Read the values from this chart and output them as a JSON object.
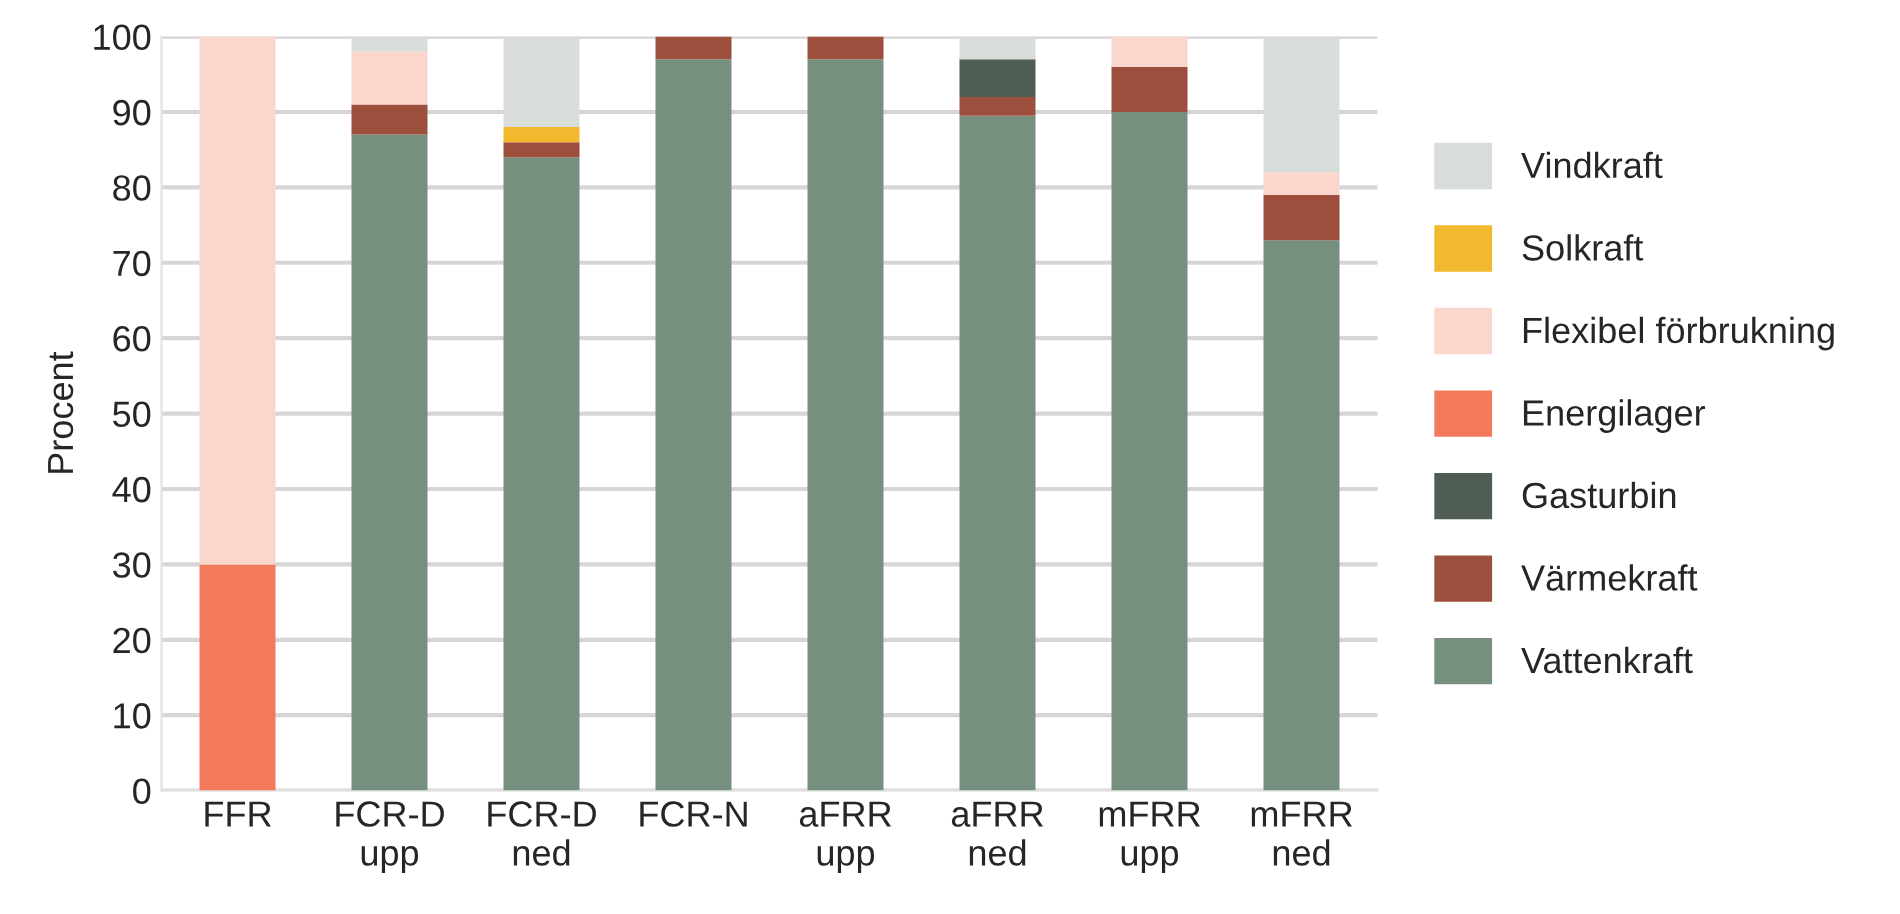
{
  "chart_data": {
    "type": "bar",
    "stacked": true,
    "ylabel": "Procent",
    "categories": [
      "FFR",
      "FCR-D\nupp",
      "FCR-D\nned",
      "FCR-N",
      "aFRR\nupp",
      "aFRR\nned",
      "mFRR\nupp",
      "mFRR\nned"
    ],
    "series": [
      {
        "name": "Vattenkraft",
        "color": "#778f7e",
        "values": [
          null,
          87,
          84,
          97,
          97,
          89.5,
          90,
          73
        ]
      },
      {
        "name": "Värmekraft",
        "color": "#9c4f3c",
        "values": [
          null,
          4,
          2,
          3,
          3,
          2.5,
          6,
          6
        ]
      },
      {
        "name": "Gasturbin",
        "color": "#4f5d53",
        "values": [
          null,
          null,
          null,
          null,
          null,
          5,
          null,
          null
        ]
      },
      {
        "name": "Energilager",
        "color": "#f27a5a",
        "values": [
          30,
          null,
          null,
          null,
          null,
          null,
          null,
          null
        ]
      },
      {
        "name": "Flexibel förbrukning",
        "color": "#fbd6cc",
        "values": [
          70,
          7,
          null,
          null,
          null,
          null,
          4,
          3
        ]
      },
      {
        "name": "Solkraft",
        "color": "#f2b92f",
        "values": [
          null,
          null,
          2,
          null,
          null,
          null,
          null,
          null
        ]
      },
      {
        "name": "Vindkraft",
        "color": "#d8ddd9",
        "values": [
          null,
          2,
          12,
          null,
          null,
          3,
          null,
          18
        ]
      }
    ],
    "ylim": [
      0,
      100
    ],
    "yticks": [
      0,
      10,
      20,
      30,
      40,
      50,
      60,
      70,
      80,
      90,
      100
    ],
    "grid": "y",
    "legend": "right"
  }
}
